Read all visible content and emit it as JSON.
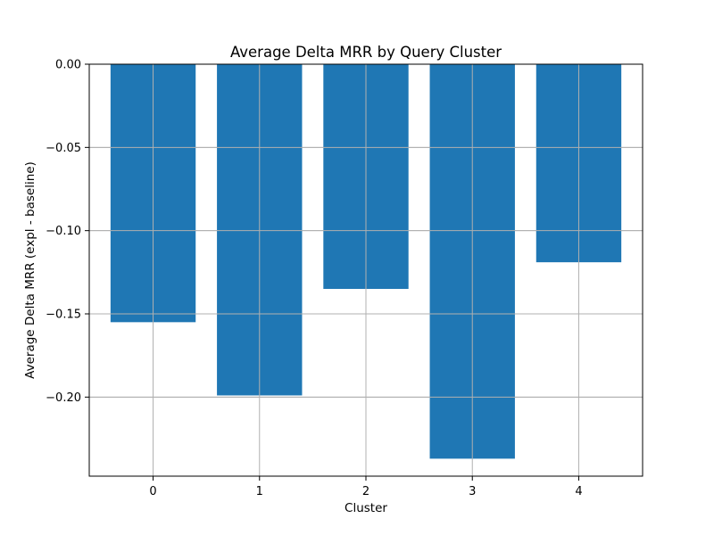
{
  "chart_data": {
    "type": "bar",
    "title": "Average Delta MRR by Query Cluster",
    "xlabel": "Cluster",
    "ylabel": "Average Delta MRR (expl - baseline)",
    "categories": [
      "0",
      "1",
      "2",
      "3",
      "4"
    ],
    "values": [
      -0.155,
      -0.199,
      -0.135,
      -0.237,
      -0.119
    ],
    "ylim": [
      -0.2475,
      0.0
    ],
    "yticks": [
      0.0,
      -0.05,
      -0.1,
      -0.15,
      -0.2
    ],
    "ytick_labels": [
      "0.00",
      "−0.05",
      "−0.10",
      "−0.15",
      "−0.20"
    ],
    "grid": true,
    "bar_color": "#1f77b4",
    "grid_color": "#b0b0b0"
  }
}
